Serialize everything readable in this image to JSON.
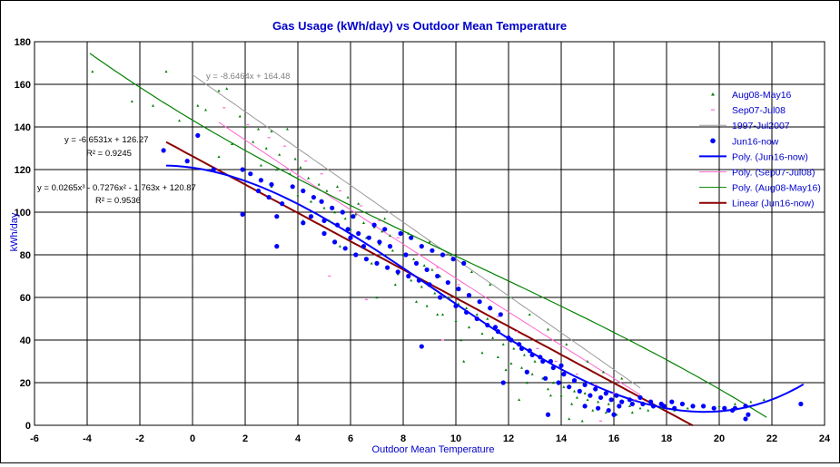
{
  "chart_data": {
    "type": "scatter",
    "title": "Gas Usage (kWh/day) vs Outdoor Mean Temperature",
    "xlabel": "Outdoor Mean Temperature",
    "ylabel": "kWh/day",
    "xlim": [
      -6,
      24
    ],
    "ylim": [
      0,
      180
    ],
    "x_ticks": [
      "-6",
      "-4",
      "-2",
      "0",
      "2",
      "4",
      "6",
      "8",
      "10",
      "12",
      "14",
      "16",
      "18",
      "20",
      "22",
      "24"
    ],
    "y_ticks": [
      "0",
      "20",
      "40",
      "60",
      "80",
      "100",
      "120",
      "140",
      "160",
      "180"
    ],
    "grid": true,
    "legend_position": "right",
    "colors": {
      "title": "#0000cc",
      "aug08_may16": "#008000",
      "sep07_jul08": "#ff66cc",
      "reference_1997": "#999999",
      "jun16_now": "#0000ff",
      "linear_jun16": "#8b0000"
    },
    "series": [
      {
        "name": "Aug08-May16",
        "kind": "scatter",
        "marker": "small-triangle",
        "points": [
          [
            -3.8,
            166
          ],
          [
            -1.0,
            166
          ],
          [
            1.0,
            157
          ],
          [
            1.3,
            158
          ],
          [
            -2.3,
            152
          ],
          [
            -1.5,
            150
          ],
          [
            0.2,
            150
          ],
          [
            0.5,
            148
          ],
          [
            1.8,
            145
          ],
          [
            -0.5,
            143
          ],
          [
            2.0,
            140
          ],
          [
            2.5,
            139
          ],
          [
            3.0,
            138
          ],
          [
            3.6,
            139
          ],
          [
            1.5,
            132
          ],
          [
            2.3,
            133
          ],
          [
            2.8,
            130
          ],
          [
            3.3,
            127
          ],
          [
            3.9,
            125
          ],
          [
            1.0,
            126
          ],
          [
            2.6,
            122
          ],
          [
            3.2,
            120
          ],
          [
            3.7,
            118
          ],
          [
            4.1,
            121
          ],
          [
            4.4,
            116
          ],
          [
            4.8,
            113
          ],
          [
            5.1,
            110
          ],
          [
            5.5,
            112
          ],
          [
            5.9,
            107
          ],
          [
            4.5,
            105
          ],
          [
            5.0,
            102
          ],
          [
            5.4,
            100
          ],
          [
            5.8,
            97
          ],
          [
            6.2,
            99
          ],
          [
            6.5,
            95
          ],
          [
            6.9,
            93
          ],
          [
            7.2,
            91
          ],
          [
            7.5,
            89
          ],
          [
            6.0,
            92
          ],
          [
            6.6,
            88
          ],
          [
            7.1,
            85
          ],
          [
            7.6,
            82
          ],
          [
            8.0,
            80
          ],
          [
            8.4,
            78
          ],
          [
            8.8,
            75
          ],
          [
            9.1,
            73
          ],
          [
            9.4,
            70
          ],
          [
            7.8,
            71
          ],
          [
            8.3,
            68
          ],
          [
            8.7,
            65
          ],
          [
            9.2,
            62
          ],
          [
            9.7,
            60
          ],
          [
            10.1,
            57
          ],
          [
            10.4,
            55
          ],
          [
            10.8,
            52
          ],
          [
            11.2,
            50
          ],
          [
            9.5,
            52
          ],
          [
            10.0,
            49
          ],
          [
            10.5,
            46
          ],
          [
            11.0,
            43
          ],
          [
            11.4,
            41
          ],
          [
            11.8,
            38
          ],
          [
            12.2,
            36
          ],
          [
            12.6,
            33
          ],
          [
            13.0,
            30
          ],
          [
            11.6,
            32
          ],
          [
            12.1,
            29
          ],
          [
            12.5,
            27
          ],
          [
            12.9,
            24
          ],
          [
            13.3,
            22
          ],
          [
            13.7,
            20
          ],
          [
            14.1,
            18
          ],
          [
            14.5,
            16
          ],
          [
            14.9,
            15
          ],
          [
            13.5,
            17
          ],
          [
            14.0,
            14
          ],
          [
            14.6,
            13
          ],
          [
            15.0,
            12
          ],
          [
            15.4,
            11
          ],
          [
            15.8,
            10
          ],
          [
            16.2,
            9
          ],
          [
            16.6,
            9
          ],
          [
            17.0,
            8
          ],
          [
            15.2,
            7
          ],
          [
            15.7,
            6
          ],
          [
            16.1,
            5
          ],
          [
            16.7,
            6
          ],
          [
            17.3,
            7
          ],
          [
            17.8,
            8
          ],
          [
            18.3,
            7
          ],
          [
            18.8,
            8
          ],
          [
            19.4,
            9
          ],
          [
            20.0,
            9
          ],
          [
            20.6,
            10
          ],
          [
            21.2,
            11
          ],
          [
            21.7,
            12
          ],
          [
            14.3,
            3
          ],
          [
            14.8,
            2
          ],
          [
            4.0,
            108
          ],
          [
            5.2,
            96
          ],
          [
            6.3,
            104
          ],
          [
            7.3,
            97
          ],
          [
            8.2,
            90
          ],
          [
            9.0,
            86
          ],
          [
            9.8,
            80
          ],
          [
            10.6,
            72
          ],
          [
            11.3,
            66
          ],
          [
            12.0,
            60
          ],
          [
            12.8,
            52
          ],
          [
            13.5,
            45
          ],
          [
            14.2,
            38
          ],
          [
            15.0,
            30
          ],
          [
            15.6,
            25
          ],
          [
            16.3,
            22
          ],
          [
            3.0,
            112
          ],
          [
            4.2,
            96
          ],
          [
            5.6,
            84
          ],
          [
            6.8,
            76
          ],
          [
            7.7,
            66
          ],
          [
            8.5,
            58
          ],
          [
            9.3,
            52
          ],
          [
            10.2,
            40
          ],
          [
            11.0,
            34
          ],
          [
            11.9,
            26
          ],
          [
            12.7,
            20
          ],
          [
            13.6,
            14
          ],
          [
            14.4,
            10
          ],
          [
            7.0,
            60
          ],
          [
            8.9,
            56
          ],
          [
            10.3,
            30
          ],
          [
            12.4,
            12
          ]
        ]
      },
      {
        "name": "Sep07-Jul08",
        "kind": "scatter",
        "marker": "small-dash",
        "points": [
          [
            1.2,
            149
          ],
          [
            2.1,
            141
          ],
          [
            2.9,
            135
          ],
          [
            3.5,
            131
          ],
          [
            4.3,
            124
          ],
          [
            4.9,
            118
          ],
          [
            5.6,
            110
          ],
          [
            6.4,
            103
          ],
          [
            7.1,
            96
          ],
          [
            7.8,
            88
          ],
          [
            8.6,
            80
          ],
          [
            9.3,
            74
          ],
          [
            10.1,
            66
          ],
          [
            10.9,
            58
          ],
          [
            11.6,
            51
          ],
          [
            12.3,
            44
          ],
          [
            13.1,
            36
          ],
          [
            13.8,
            30
          ],
          [
            14.6,
            24
          ],
          [
            15.3,
            19
          ],
          [
            16.0,
            15
          ],
          [
            16.8,
            12
          ],
          [
            5.2,
            70
          ],
          [
            6.6,
            59
          ],
          [
            9.5,
            40
          ],
          [
            15.5,
            2
          ]
        ]
      },
      {
        "name": "1997-Jul2007",
        "kind": "line",
        "equation": "y = -8.6464x + 164.48",
        "slope": -8.6464,
        "intercept": 164.48,
        "x_range": [
          0,
          17
        ]
      },
      {
        "name": "Jun16-now",
        "kind": "scatter",
        "marker": "dot",
        "points": [
          [
            -1.1,
            129
          ],
          [
            0.2,
            136
          ],
          [
            -0.2,
            124
          ],
          [
            0.8,
            120
          ],
          [
            1.9,
            120
          ],
          [
            2.2,
            118
          ],
          [
            2.6,
            115
          ],
          [
            3.0,
            113
          ],
          [
            2.5,
            110
          ],
          [
            2.9,
            107
          ],
          [
            3.4,
            104
          ],
          [
            1.9,
            99
          ],
          [
            3.2,
            98
          ],
          [
            3.8,
            112
          ],
          [
            4.2,
            110
          ],
          [
            4.6,
            107
          ],
          [
            4.9,
            105
          ],
          [
            5.3,
            102
          ],
          [
            5.7,
            100
          ],
          [
            6.1,
            98
          ],
          [
            4.5,
            98
          ],
          [
            5.0,
            96
          ],
          [
            5.5,
            94
          ],
          [
            5.9,
            92
          ],
          [
            6.3,
            90
          ],
          [
            6.7,
            88
          ],
          [
            7.1,
            86
          ],
          [
            7.5,
            84
          ],
          [
            4.2,
            95
          ],
          [
            5.0,
            90
          ],
          [
            5.4,
            86
          ],
          [
            5.8,
            83
          ],
          [
            6.2,
            80
          ],
          [
            6.6,
            78
          ],
          [
            7.0,
            76
          ],
          [
            7.4,
            74
          ],
          [
            7.8,
            72
          ],
          [
            8.2,
            70
          ],
          [
            8.6,
            68
          ],
          [
            9.0,
            66
          ],
          [
            6.0,
            88
          ],
          [
            6.9,
            94
          ],
          [
            7.3,
            92
          ],
          [
            7.9,
            90
          ],
          [
            8.3,
            88
          ],
          [
            8.7,
            84
          ],
          [
            9.1,
            82
          ],
          [
            9.5,
            80
          ],
          [
            9.9,
            78
          ],
          [
            10.3,
            76
          ],
          [
            8.1,
            80
          ],
          [
            8.5,
            76
          ],
          [
            8.9,
            73
          ],
          [
            9.3,
            70
          ],
          [
            9.7,
            67
          ],
          [
            10.1,
            64
          ],
          [
            10.5,
            61
          ],
          [
            10.9,
            58
          ],
          [
            11.3,
            55
          ],
          [
            11.7,
            52
          ],
          [
            3.2,
            84
          ],
          [
            6.5,
            84
          ],
          [
            9.4,
            60
          ],
          [
            10.0,
            56
          ],
          [
            10.4,
            53
          ],
          [
            10.8,
            50
          ],
          [
            11.2,
            47
          ],
          [
            11.6,
            44
          ],
          [
            12.0,
            41
          ],
          [
            12.4,
            38
          ],
          [
            12.8,
            35
          ],
          [
            13.2,
            32
          ],
          [
            13.6,
            30
          ],
          [
            14.0,
            28
          ],
          [
            8.7,
            37
          ],
          [
            11.5,
            46
          ],
          [
            12.1,
            40
          ],
          [
            12.5,
            36
          ],
          [
            12.9,
            33
          ],
          [
            13.3,
            30
          ],
          [
            13.7,
            27
          ],
          [
            14.1,
            24
          ],
          [
            14.5,
            21
          ],
          [
            14.9,
            19
          ],
          [
            15.3,
            17
          ],
          [
            15.7,
            15
          ],
          [
            16.1,
            14
          ],
          [
            11.8,
            20
          ],
          [
            12.7,
            25
          ],
          [
            13.4,
            22
          ],
          [
            13.9,
            20
          ],
          [
            14.3,
            18
          ],
          [
            14.7,
            16
          ],
          [
            15.1,
            14
          ],
          [
            15.5,
            13
          ],
          [
            15.9,
            12
          ],
          [
            16.3,
            11
          ],
          [
            16.7,
            10
          ],
          [
            17.1,
            10
          ],
          [
            17.5,
            9
          ],
          [
            17.9,
            9
          ],
          [
            18.3,
            8
          ],
          [
            14.9,
            9
          ],
          [
            15.4,
            8
          ],
          [
            15.8,
            7
          ],
          [
            16.2,
            9
          ],
          [
            16.6,
            12
          ],
          [
            17.0,
            13
          ],
          [
            17.4,
            11
          ],
          [
            17.8,
            10
          ],
          [
            18.2,
            11
          ],
          [
            18.6,
            10
          ],
          [
            19.0,
            9
          ],
          [
            19.4,
            9
          ],
          [
            19.8,
            8
          ],
          [
            20.2,
            8
          ],
          [
            20.6,
            8
          ],
          [
            21.0,
            9
          ],
          [
            21.1,
            5
          ],
          [
            21.0,
            3
          ],
          [
            13.5,
            5
          ],
          [
            16.0,
            5
          ],
          [
            23.1,
            10
          ],
          [
            20.5,
            7
          ]
        ]
      },
      {
        "name": "Poly. (Jun16-now)",
        "kind": "line"
      },
      {
        "name": "Poly. (Sep07-Jul08)",
        "kind": "line"
      },
      {
        "name": "Poly. (Aug08-May16)",
        "kind": "line"
      },
      {
        "name": "Linear (Jun16-now)",
        "kind": "line"
      }
    ],
    "trendlines": {
      "poly_jun16": {
        "coeffs": [
          0.0265,
          -0.7276,
          -1.763,
          120.87
        ],
        "x_range": [
          -1,
          23.2
        ]
      },
      "poly_sep07": {
        "coeffs": [
          0.0,
          0.02,
          -8.35,
          150.5
        ],
        "x_range": [
          1,
          17
        ]
      },
      "poly_aug08": {
        "coeffs": [
          -0.0047,
          0.148,
          -7.39,
          143.2
        ],
        "x_range": [
          -3.9,
          21.8
        ]
      },
      "linear_jun16": {
        "slope": -6.6531,
        "intercept": 126.27,
        "x_range": [
          -1,
          19
        ]
      }
    },
    "annotations": {
      "ref_equation": "y = -8.6464x + 164.48",
      "linear_equation": "y = -6.6531x + 126.27",
      "linear_r2": "R² = 0.9245",
      "poly_equation": "y = 0.0265x³ - 0.7276x² - 1.763x + 120.87",
      "poly_r2": "R² = 0.9536"
    }
  }
}
